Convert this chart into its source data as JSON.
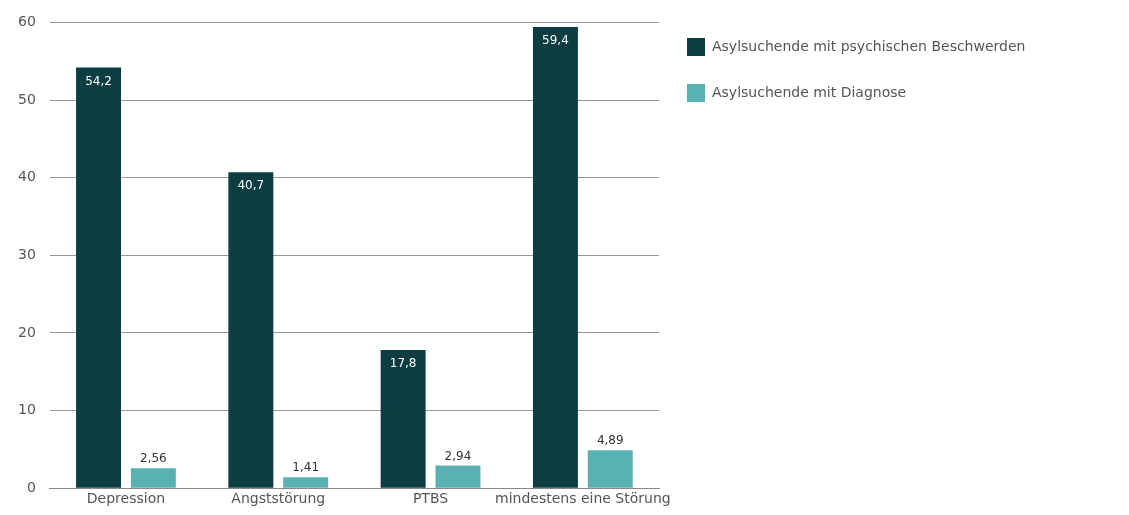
{
  "chart_data": {
    "type": "bar",
    "categories": [
      "Depression",
      "Angststörung",
      "PTBS",
      "mindestens eine Störung"
    ],
    "series": [
      {
        "name": "Asylsuchende mit psychischen Beschwerden",
        "color": "#0b3d42",
        "values": [
          54.2,
          40.7,
          17.8,
          59.4
        ],
        "value_labels": [
          "54,2",
          "40,7",
          "17,8",
          "59,4"
        ]
      },
      {
        "name": "Asylsuchende mit Diagnose",
        "color": "#5ab1b3",
        "values": [
          2.56,
          1.41,
          2.94,
          4.89
        ],
        "value_labels": [
          "2,56",
          "1,41",
          "2,94",
          "4,89"
        ]
      }
    ],
    "ylim": [
      0,
      60
    ],
    "yticks": [
      0,
      10,
      20,
      30,
      40,
      50,
      60
    ],
    "grid": "y",
    "legend": "top right"
  }
}
